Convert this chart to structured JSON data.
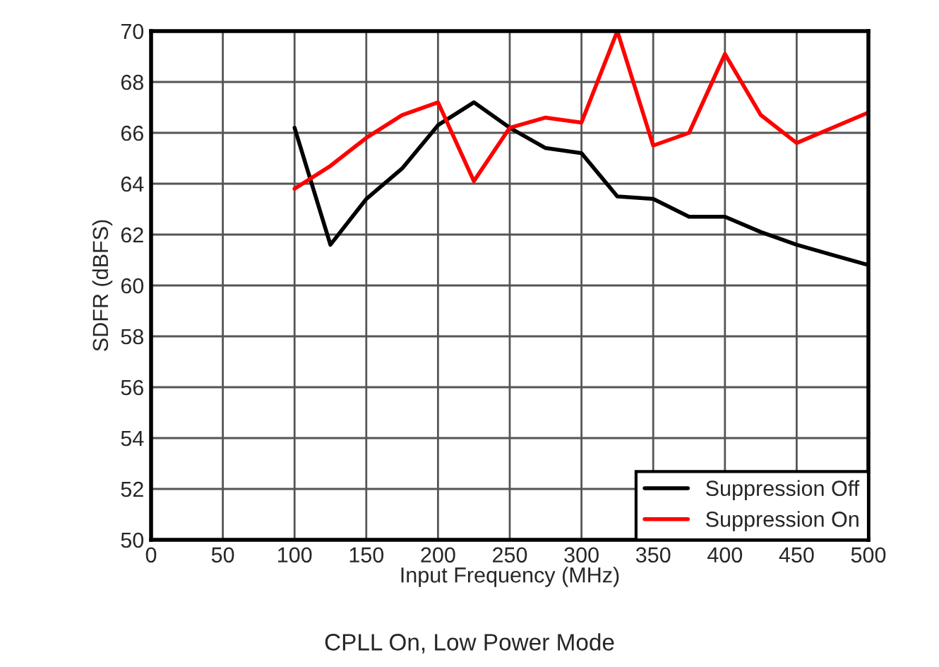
{
  "chart_data": {
    "type": "line",
    "xlabel": "Input Frequency (MHz)",
    "ylabel": "SDFR (dBFS)",
    "annotations": [
      "CPLL On, Low Power Mode"
    ],
    "x": [
      100,
      125,
      150,
      175,
      200,
      225,
      250,
      275,
      300,
      325,
      350,
      375,
      400,
      425,
      450,
      475,
      500
    ],
    "series": [
      {
        "name": "Suppression Off",
        "color": "#000000",
        "values": [
          66.2,
          61.6,
          63.4,
          64.6,
          66.3,
          67.2,
          66.2,
          65.4,
          65.2,
          63.5,
          63.4,
          62.7,
          62.7,
          62.1,
          61.6,
          61.2,
          60.8
        ]
      },
      {
        "name": "Suppression On",
        "color": "#ff0000",
        "values": [
          63.8,
          64.7,
          65.8,
          66.7,
          67.2,
          64.1,
          66.2,
          66.6,
          66.4,
          70,
          65.5,
          66.0,
          69.1,
          66.7,
          65.6,
          66.2,
          66.8
        ]
      }
    ],
    "xlim": [
      0,
      500
    ],
    "xticks": [
      0,
      50,
      100,
      150,
      200,
      250,
      300,
      350,
      400,
      450,
      500
    ],
    "ylim": [
      50,
      70
    ],
    "yticks": [
      50,
      52,
      54,
      56,
      58,
      60,
      62,
      64,
      66,
      68,
      70
    ],
    "grid": true,
    "legend": "bottom right",
    "line_style": "solid",
    "marker": "none"
  }
}
